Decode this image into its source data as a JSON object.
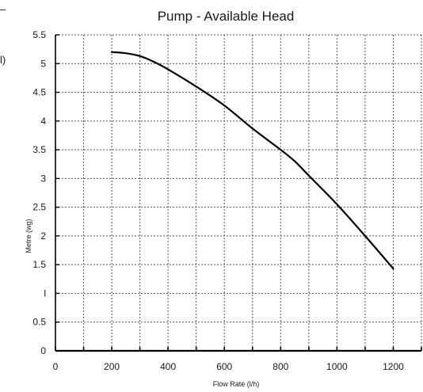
{
  "edge": {
    "dash": "–",
    "paren": "l)"
  },
  "chart_data": {
    "type": "line",
    "title": "Pump -  Available Head",
    "xlabel": "Flow Rate  (l/h)",
    "ylabel": "Metre  (wg)",
    "xlim": [
      0,
      1300
    ],
    "ylim": [
      0,
      5.5
    ],
    "xticks": [
      0,
      200,
      400,
      600,
      800,
      1000,
      1200
    ],
    "xtick_labels": [
      "0",
      "200",
      "400",
      "600",
      "800",
      "1000",
      "1200"
    ],
    "yticks": [
      0,
      0.5,
      1,
      1.5,
      2,
      2.5,
      3,
      3.5,
      4,
      4.5,
      5,
      5.5
    ],
    "ytick_labels": [
      "0",
      "0.5",
      "l",
      "1.5",
      "2",
      "2.5",
      "3",
      "3.5",
      "4",
      "4.5",
      "5",
      "5.5"
    ],
    "x_grid_step": 100,
    "y_grid_step": 0.5,
    "grid": true,
    "grid_style": "dotted",
    "legend": "none",
    "series": [
      {
        "x": [
          200,
          250,
          300,
          350,
          400,
          500,
          600,
          700,
          800,
          850,
          900,
          1000,
          1100,
          1200
        ],
        "values": [
          5.2,
          5.18,
          5.13,
          5.03,
          4.9,
          4.6,
          4.27,
          3.87,
          3.5,
          3.3,
          3.05,
          2.55,
          2.0,
          1.43
        ]
      }
    ],
    "colors": {
      "line": "#000000",
      "grid": "#555555",
      "axis": "#000000"
    }
  }
}
